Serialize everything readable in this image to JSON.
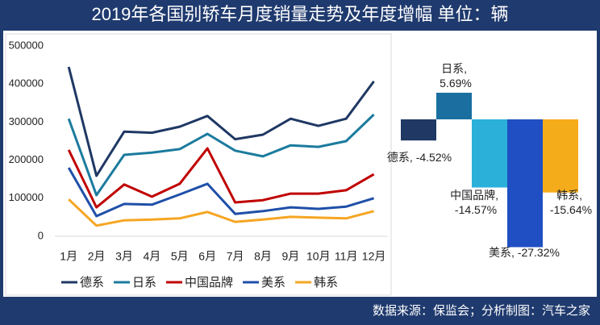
{
  "title": "2019年各国别轿车月度销量走势及年度增幅  单位：辆",
  "source": "数据来源：保监会；分析制图：汽车之家",
  "chart_data": [
    {
      "type": "line",
      "categories": [
        "1月",
        "2月",
        "3月",
        "4月",
        "5月",
        "6月",
        "7月",
        "8月",
        "9月",
        "10月",
        "11月",
        "12月"
      ],
      "series": [
        {
          "name": "德系",
          "color": "#1f3864",
          "values": [
            445000,
            159000,
            275000,
            272000,
            288000,
            316000,
            255000,
            267000,
            309000,
            290000,
            309000,
            407000
          ]
        },
        {
          "name": "日系",
          "color": "#1b7b9e",
          "values": [
            309000,
            108000,
            214000,
            220000,
            229000,
            269000,
            225000,
            210000,
            239000,
            235000,
            250000,
            320000
          ]
        },
        {
          "name": "中国品牌",
          "color": "#c00000",
          "values": [
            227000,
            76000,
            136000,
            104000,
            138000,
            231000,
            89000,
            95000,
            112000,
            112000,
            121000,
            163000
          ]
        },
        {
          "name": "美系",
          "color": "#1f4fa8",
          "values": [
            180000,
            53000,
            85000,
            83000,
            110000,
            138000,
            59000,
            66000,
            76000,
            72000,
            78000,
            100000
          ]
        },
        {
          "name": "韩系",
          "color": "#f5a623",
          "values": [
            97000,
            28000,
            42000,
            44000,
            47000,
            64000,
            38000,
            44000,
            51000,
            49000,
            47000,
            66000
          ]
        }
      ],
      "ylim": [
        0,
        500000
      ],
      "yticks": [
        0,
        100000,
        200000,
        300000,
        400000,
        500000
      ],
      "grid": false,
      "legend": "bottom"
    },
    {
      "type": "bar",
      "categories": [
        "德系",
        "日系",
        "中国品牌",
        "美系",
        "韩系"
      ],
      "values": [
        -4.52,
        5.69,
        -14.57,
        -27.32,
        -15.64
      ],
      "value_labels": [
        "-4.52%",
        "5.69%",
        "-14.57%",
        "-27.32%",
        "-15.64%"
      ],
      "label_separator": ", ",
      "colors": [
        "#1f3864",
        "#1a6fa0",
        "#2bb0da",
        "#1f4fc2",
        "#f5ac1b"
      ],
      "ylim": [
        -30,
        8
      ]
    }
  ]
}
